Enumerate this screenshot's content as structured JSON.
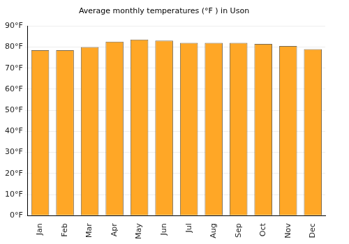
{
  "chart_data": {
    "type": "bar",
    "title": "Average monthly temperatures (°F ) in Uson",
    "categories": [
      "Jan",
      "Feb",
      "Mar",
      "Apr",
      "May",
      "Jun",
      "Jul",
      "Aug",
      "Sep",
      "Oct",
      "Nov",
      "Dec"
    ],
    "values": [
      78.5,
      78.5,
      80,
      82.5,
      83.5,
      83,
      82,
      82,
      82,
      81.5,
      80.5,
      79
    ],
    "color": "#ffa726",
    "ylim": [
      0,
      90
    ],
    "yticks": [
      {
        "value": 0,
        "label": "0°F"
      },
      {
        "value": 10,
        "label": "10°F"
      },
      {
        "value": 20,
        "label": "20°F"
      },
      {
        "value": 30,
        "label": "30°F"
      },
      {
        "value": 40,
        "label": "40°F"
      },
      {
        "value": 50,
        "label": "50°F"
      },
      {
        "value": 60,
        "label": "60°F"
      },
      {
        "value": 70,
        "label": "70°F"
      },
      {
        "value": 80,
        "label": "80°F"
      },
      {
        "value": 90,
        "label": "90°F"
      }
    ],
    "grid": true
  }
}
